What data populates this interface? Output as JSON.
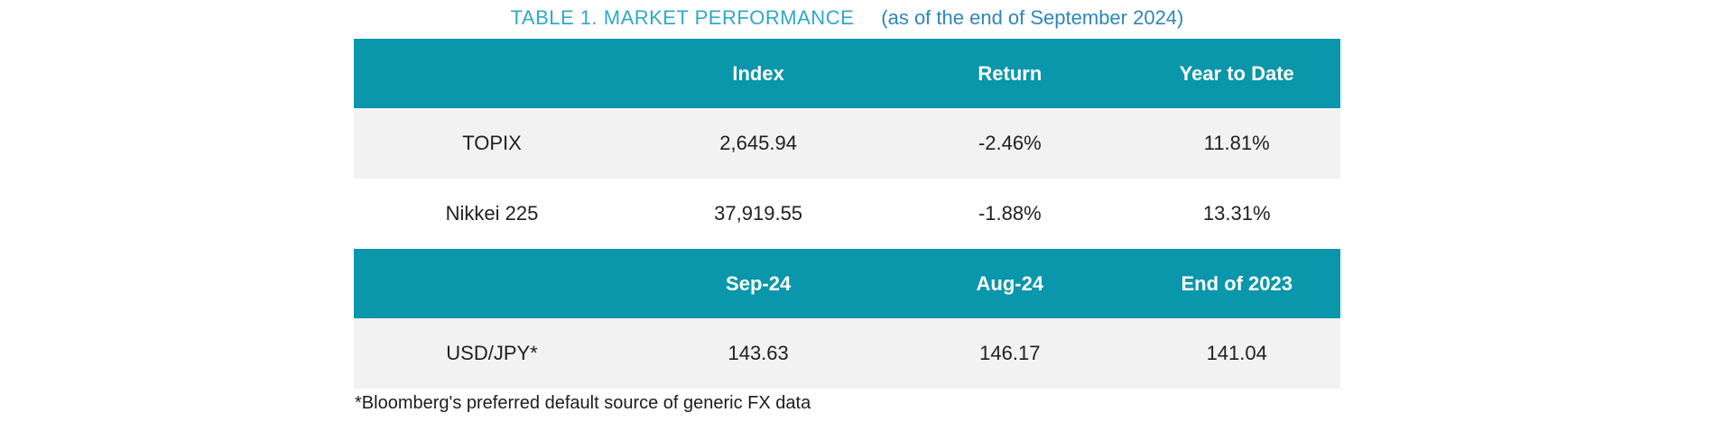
{
  "title": {
    "main": "TABLE 1. MARKET PERFORMANCE",
    "suffix": "(as of the end of September 2024)"
  },
  "index_table": {
    "headers": [
      "",
      "Index",
      "Return",
      "Year to Date"
    ],
    "rows": [
      {
        "label": "TOPIX",
        "index": "2,645.94",
        "return": "-2.46%",
        "ytd": "11.81%"
      },
      {
        "label": "Nikkei 225",
        "index": "37,919.55",
        "return": "-1.88%",
        "ytd": "13.31%"
      }
    ]
  },
  "fx_table": {
    "headers": [
      "",
      "Sep-24",
      "Aug-24",
      "End of 2023"
    ],
    "rows": [
      {
        "label": "USD/JPY*",
        "sep24": "143.63",
        "aug24": "146.17",
        "end2023": "141.04"
      }
    ]
  },
  "footnote": "*Bloomberg's preferred default source of generic FX data",
  "colors": {
    "header_bg": "#0a96ab",
    "row_alt_bg": "#f2f2f2",
    "row_bg": "#ffffff",
    "title_teal": "#2fa9c6",
    "title_blue": "#2e86ba",
    "header_text": "#ffffff",
    "body_text": "#1f1f1f"
  }
}
